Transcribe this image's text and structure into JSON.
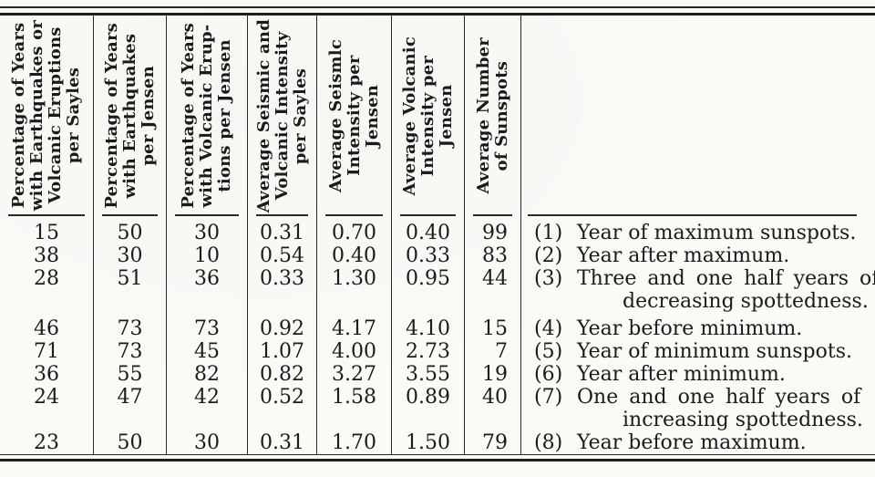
{
  "page": {
    "background": "#fbfaf7",
    "ink": "#1b1b1b",
    "description": "Scanned table comparing earthquake and volcanic activity statistics with sunspot cycle phases"
  },
  "table": {
    "headers": [
      "Percentage of Years\nwith Earthquakes or\nVolcanic Eruptions\nper Sayles",
      "Percentage of Years\nwith Earthquakes\nper Jensen",
      "Percentage of Years\nwith Volcanic Erup-\ntions per Jensen",
      "Average Seismic and\nVolcanic Intensity\nper Sayles",
      "Average Seismlc\nIntensity per\nJensen",
      "Average Volcanic\nIntensity per\nJensen",
      "Average Number\nof Sunspots"
    ],
    "rows": [
      {
        "values": [
          "15",
          "50",
          "30",
          "0.31",
          "0.70",
          "0.40",
          "99"
        ],
        "num": "(1)",
        "lines": [
          "Year of maximum sunspots."
        ]
      },
      {
        "values": [
          "38",
          "30",
          "10",
          "0.54",
          "0.40",
          "0.33",
          "83"
        ],
        "num": "(2)",
        "lines": [
          "Year after maximum."
        ]
      },
      {
        "values": [
          "28",
          "51",
          "36",
          "0.33",
          "1.30",
          "0.95",
          "44"
        ],
        "num": "(3)",
        "lines": [
          "Three and one half years of",
          "decreasing spottedness."
        ]
      },
      {
        "values": [
          "46",
          "73",
          "73",
          "0.92",
          "4.17",
          "4.10",
          "15"
        ],
        "num": "(4)",
        "lines": [
          "Year before minimum."
        ]
      },
      {
        "values": [
          "71",
          "73",
          "45",
          "1.07",
          "4.00",
          "2.73",
          "7"
        ],
        "num": "(5)",
        "lines": [
          "Year of minimum sunspots."
        ]
      },
      {
        "values": [
          "36",
          "55",
          "82",
          "0.82",
          "3.27",
          "3.55",
          "19"
        ],
        "num": "(6)",
        "lines": [
          "Year after minimum."
        ]
      },
      {
        "values": [
          "24",
          "47",
          "42",
          "0.52",
          "1.58",
          "0.89",
          "40"
        ],
        "num": "(7)",
        "lines": [
          "One and one half years of",
          "increasing spottedness."
        ]
      },
      {
        "values": [
          "23",
          "50",
          "30",
          "0.31",
          "1.70",
          "1.50",
          "79"
        ],
        "num": "(8)",
        "lines": [
          "Year before maximum."
        ]
      }
    ]
  }
}
